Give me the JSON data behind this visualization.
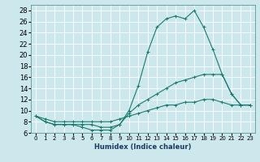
{
  "title": "",
  "xlabel": "Humidex (Indice chaleur)",
  "ylabel": "",
  "background_color": "#cce8ec",
  "grid_color": "#ffffff",
  "line_color": "#1a7a6e",
  "xlim": [
    -0.5,
    23.5
  ],
  "ylim": [
    6,
    29
  ],
  "xticks": [
    0,
    1,
    2,
    3,
    4,
    5,
    6,
    7,
    8,
    9,
    10,
    11,
    12,
    13,
    14,
    15,
    16,
    17,
    18,
    19,
    20,
    21,
    22,
    23
  ],
  "yticks": [
    6,
    8,
    10,
    12,
    14,
    16,
    18,
    20,
    22,
    24,
    26,
    28
  ],
  "series": [
    {
      "x": [
        0,
        1,
        2,
        3,
        4,
        5,
        6,
        7,
        8,
        9,
        10,
        11,
        12,
        13,
        14,
        15,
        16,
        17,
        18,
        19,
        20,
        21,
        22,
        23
      ],
      "y": [
        9,
        8,
        7.5,
        7.5,
        7.5,
        7,
        6.5,
        6.5,
        6.5,
        7.5,
        10,
        14.5,
        20.5,
        25,
        26.5,
        27,
        26.5,
        28,
        25,
        21,
        16.5,
        13,
        11,
        11
      ]
    },
    {
      "x": [
        0,
        1,
        2,
        3,
        4,
        5,
        6,
        7,
        8,
        9,
        10,
        11,
        12,
        13,
        14,
        15,
        16,
        17,
        18,
        19,
        20,
        21,
        22,
        23
      ],
      "y": [
        9,
        8,
        7.5,
        7.5,
        7.5,
        7.5,
        7.5,
        7,
        7,
        7.5,
        9.5,
        11,
        12,
        13,
        14,
        15,
        15.5,
        16,
        16.5,
        16.5,
        16.5,
        13,
        11,
        11
      ]
    },
    {
      "x": [
        0,
        1,
        2,
        3,
        4,
        5,
        6,
        7,
        8,
        9,
        10,
        11,
        12,
        13,
        14,
        15,
        16,
        17,
        18,
        19,
        20,
        21,
        22,
        23
      ],
      "y": [
        9,
        8.5,
        8,
        8,
        8,
        8,
        8,
        8,
        8,
        8.5,
        9,
        9.5,
        10,
        10.5,
        11,
        11,
        11.5,
        11.5,
        12,
        12,
        11.5,
        11,
        11,
        11
      ]
    }
  ],
  "xlabel_fontsize": 6,
  "xlabel_color": "#1a3a5e",
  "tick_fontsize": 5,
  "ytick_fontsize": 6
}
